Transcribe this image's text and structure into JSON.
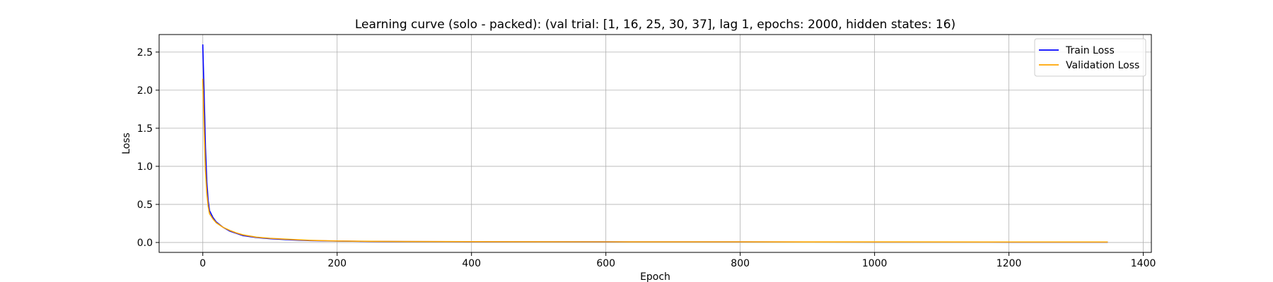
{
  "chart_data": {
    "type": "line",
    "title": "Learning curve (solo - packed): (val trial: [1, 16, 25, 30, 37], lag 1, epochs: 2000, hidden states: 16)",
    "xlabel": "Epoch",
    "ylabel": "Loss",
    "xlim": [
      -65,
      1412
    ],
    "ylim": [
      -0.13,
      2.73
    ],
    "xticks": [
      0,
      200,
      400,
      600,
      800,
      1000,
      1200,
      1400
    ],
    "yticks": [
      0.0,
      0.5,
      1.0,
      1.5,
      2.0,
      2.5
    ],
    "xtick_labels": [
      "0",
      "200",
      "400",
      "600",
      "800",
      "1000",
      "1200",
      "1400"
    ],
    "ytick_labels": [
      "0.0",
      "0.5",
      "1.0",
      "1.5",
      "2.0",
      "2.5"
    ],
    "grid": true,
    "legend_position": "top-right",
    "series": [
      {
        "name": "Train Loss",
        "color": "#0000ff",
        "x": [
          0,
          2,
          4,
          6,
          8,
          10,
          15,
          20,
          30,
          40,
          50,
          60,
          80,
          100,
          130,
          160,
          200,
          250,
          300,
          400,
          500,
          600,
          800,
          1000,
          1200,
          1347
        ],
        "y": [
          2.6,
          1.95,
          1.25,
          0.8,
          0.55,
          0.42,
          0.33,
          0.27,
          0.2,
          0.15,
          0.12,
          0.09,
          0.065,
          0.05,
          0.035,
          0.025,
          0.018,
          0.014,
          0.012,
          0.01,
          0.009,
          0.008,
          0.007,
          0.006,
          0.005,
          0.005
        ]
      },
      {
        "name": "Validation Loss",
        "color": "#ffa500",
        "x": [
          0,
          2,
          4,
          6,
          8,
          10,
          15,
          20,
          30,
          40,
          50,
          60,
          80,
          100,
          130,
          160,
          200,
          250,
          300,
          400,
          500,
          600,
          800,
          1000,
          1200,
          1347
        ],
        "y": [
          2.15,
          1.5,
          0.95,
          0.65,
          0.48,
          0.38,
          0.31,
          0.26,
          0.2,
          0.16,
          0.125,
          0.1,
          0.07,
          0.055,
          0.04,
          0.028,
          0.02,
          0.015,
          0.013,
          0.011,
          0.01,
          0.009,
          0.008,
          0.007,
          0.006,
          0.006
        ]
      }
    ]
  }
}
